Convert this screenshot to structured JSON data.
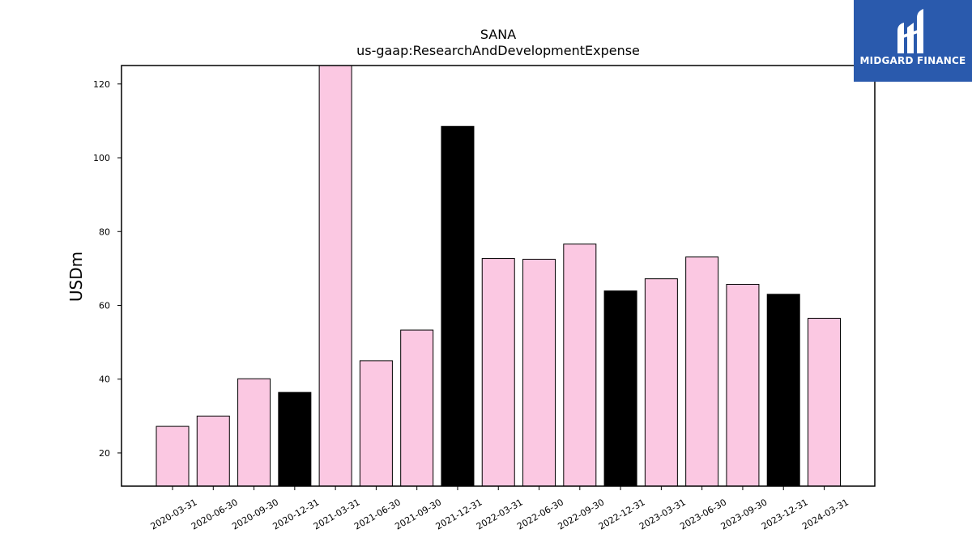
{
  "chart_data": {
    "type": "bar",
    "title": "SANA",
    "subtitle": "us-gaap:ResearchAndDevelopmentExpense",
    "ylabel": "USDm",
    "xlabel": "",
    "ylim": [
      11,
      125
    ],
    "yticks": [
      20,
      40,
      60,
      80,
      100,
      120
    ],
    "categories": [
      "2020-03-31",
      "2020-06-30",
      "2020-09-30",
      "2020-12-31",
      "2021-03-31",
      "2021-06-30",
      "2021-09-30",
      "2021-12-31",
      "2022-03-31",
      "2022-06-30",
      "2022-09-30",
      "2022-12-31",
      "2023-03-31",
      "2023-06-30",
      "2023-09-30",
      "2023-12-31",
      "2024-03-31"
    ],
    "values": [
      27.2,
      30.0,
      40.1,
      36.4,
      125.0,
      45.0,
      53.3,
      108.5,
      72.7,
      72.5,
      76.6,
      63.9,
      67.2,
      73.1,
      65.7,
      63.0,
      56.5
    ],
    "bar_colors": [
      "#fbc8e2",
      "#fbc8e2",
      "#fbc8e2",
      "#000000",
      "#fbc8e2",
      "#fbc8e2",
      "#fbc8e2",
      "#000000",
      "#fbc8e2",
      "#fbc8e2",
      "#fbc8e2",
      "#000000",
      "#fbc8e2",
      "#fbc8e2",
      "#fbc8e2",
      "#000000",
      "#fbc8e2"
    ],
    "grid": false
  },
  "logo": {
    "text": "MIDGARD FINANCE",
    "background": "#2a5aad"
  }
}
